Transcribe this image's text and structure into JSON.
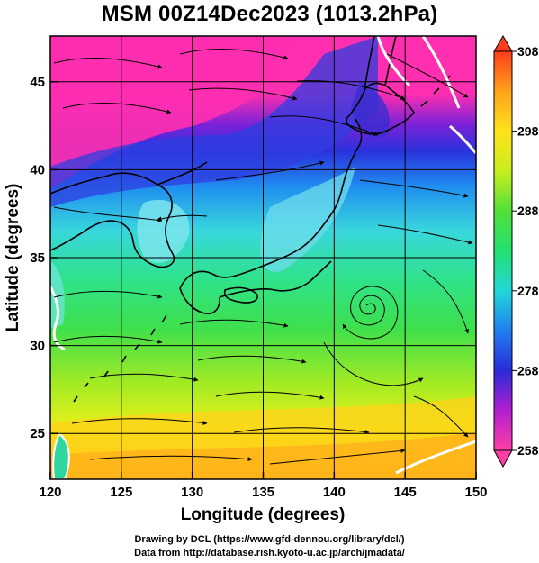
{
  "title": "MSM 00Z14Dec2023 (1013.2hPa)",
  "map": {
    "x_axis": {
      "label": "Longitude (degrees)",
      "range": [
        120,
        150
      ],
      "ticks": [
        "120",
        "125",
        "130",
        "135",
        "140",
        "145",
        "150"
      ]
    },
    "y_axis": {
      "label": "Latitude  (degrees)",
      "range": [
        22.4,
        47.6
      ],
      "ticks": [
        "25",
        "30",
        "35",
        "40",
        "45"
      ]
    },
    "grid": true,
    "colorbar": {
      "range": [
        258,
        308
      ],
      "ticks": [
        "258",
        "268",
        "278",
        "288",
        "298",
        "308"
      ],
      "colors": [
        "#ff3fa8",
        "#b21fd0",
        "#2a2ad8",
        "#1f7ff0",
        "#22d8d8",
        "#22e070",
        "#52e03a",
        "#c8ee1c",
        "#ffe21a",
        "#ffa319",
        "#ff3c1c"
      ]
    },
    "features": {
      "cyclone_center": "low-pressure swirl east of Honshu",
      "streamlines": "wind flow arrows"
    }
  },
  "credits": {
    "line1": "Drawing by DCL (https://www.gfd-dennou.org/library/dcl/)",
    "line2": "Data from http://database.rish.kyoto-u.ac.jp/arch/jmadata/"
  }
}
